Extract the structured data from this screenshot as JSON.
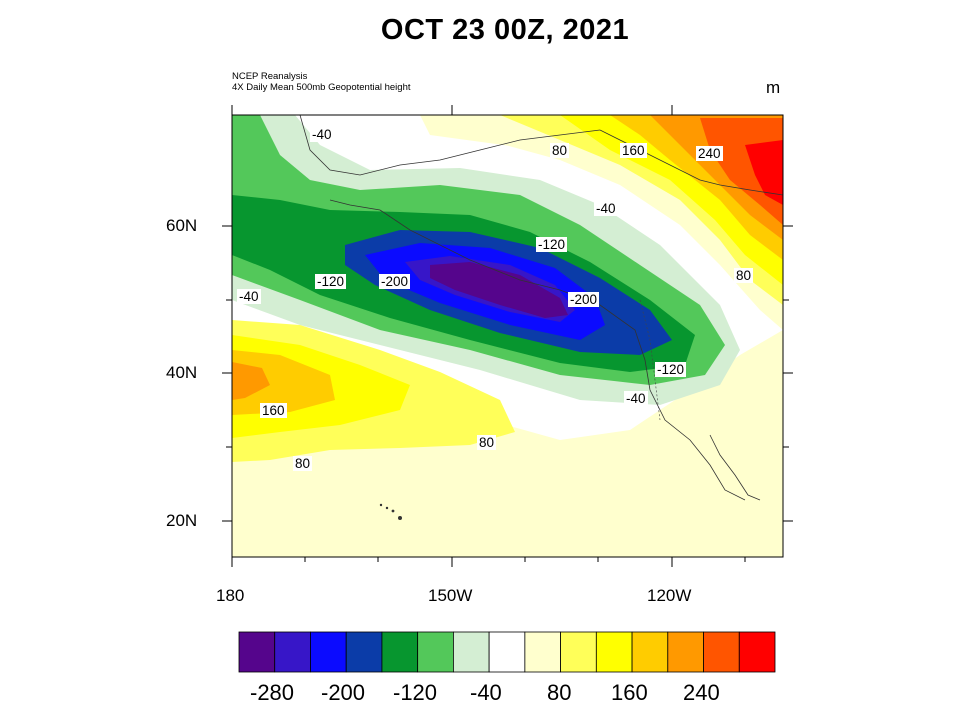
{
  "title": "OCT 23 00Z, 2021",
  "source_lines": [
    "NCEP Reanalysis",
    " 4X Daily Mean 500mb Geopotential height"
  ],
  "units": "m",
  "lat_labels": [
    "60N",
    "40N",
    "20N"
  ],
  "lon_labels": [
    "180",
    "150W",
    "120W"
  ],
  "contour_labels": [
    "-40",
    "80",
    "160",
    "240",
    "-40",
    "-120",
    "-120",
    "-200",
    "-200",
    "80",
    "-40",
    "-120",
    "-40",
    "160",
    "80",
    "80"
  ],
  "colorbar": {
    "colors": [
      "#55058c",
      "#3716c8",
      "#0b0bff",
      "#0b3ca8",
      "#07962f",
      "#53c85a",
      "#d4eed3",
      "#ffffff",
      "#ffffce",
      "#ffff59",
      "#ffff00",
      "#ffcc00",
      "#ff9900",
      "#ff5500",
      "#ff0000"
    ],
    "labels": [
      "-280",
      "-200",
      "-120",
      "-40",
      "80",
      "160",
      "240"
    ]
  }
}
